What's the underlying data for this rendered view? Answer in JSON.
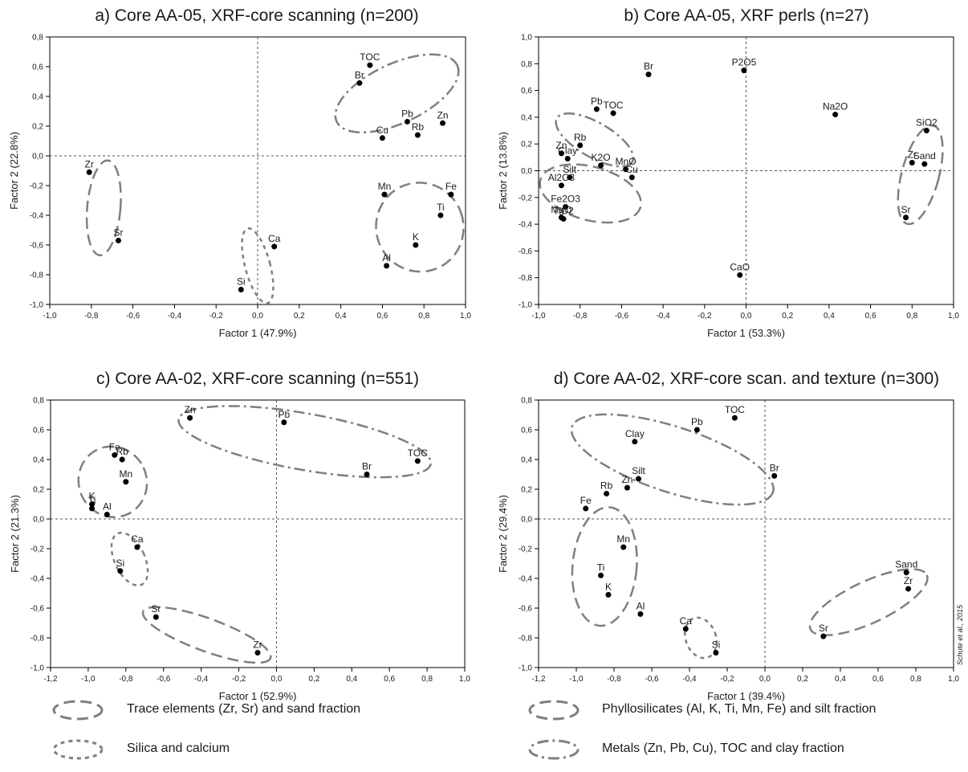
{
  "style": {
    "point_color": "#000000",
    "ellipse_color": "#7f7f7f",
    "zero_line_color": "#555555",
    "text_color": "#1a1a1a"
  },
  "credit": "Schute et al., 2015",
  "chart_data": [
    {
      "id": "a",
      "type": "scatter",
      "title": "a) Core AA-05, XRF-core scanning (n=200)",
      "xlabel": "Factor 1 (47.9%)",
      "ylabel": "Factor 2 (22.8%)",
      "xlim": [
        -1.0,
        1.0
      ],
      "ylim": [
        -1.0,
        0.8
      ],
      "xticks": [
        "-1,0",
        "-0,8",
        "-0,6",
        "-0,4",
        "-0,2",
        "0,0",
        "0,2",
        "0,4",
        "0,6",
        "0,8",
        "1,0"
      ],
      "yticks": [
        "-1,0",
        "-0,8",
        "-0,6",
        "-0,4",
        "-0,2",
        "0,0",
        "0,2",
        "0,4",
        "0,6",
        "0,8"
      ],
      "grid": false,
      "points": [
        {
          "label": "TOC",
          "x": 0.54,
          "y": 0.61
        },
        {
          "label": "Br",
          "x": 0.49,
          "y": 0.49
        },
        {
          "label": "Pb",
          "x": 0.72,
          "y": 0.23
        },
        {
          "label": "Zn",
          "x": 0.89,
          "y": 0.22
        },
        {
          "label": "Rb",
          "x": 0.77,
          "y": 0.14
        },
        {
          "label": "Cu",
          "x": 0.6,
          "y": 0.12
        },
        {
          "label": "Zr",
          "x": -0.81,
          "y": -0.11
        },
        {
          "label": "Sr",
          "x": -0.67,
          "y": -0.57
        },
        {
          "label": "Mn",
          "x": 0.61,
          "y": -0.26
        },
        {
          "label": "Fe",
          "x": 0.93,
          "y": -0.26
        },
        {
          "label": "Ti",
          "x": 0.88,
          "y": -0.4
        },
        {
          "label": "K",
          "x": 0.76,
          "y": -0.6
        },
        {
          "label": "Al",
          "x": 0.62,
          "y": -0.74
        },
        {
          "label": "Ca",
          "x": 0.08,
          "y": -0.61
        },
        {
          "label": "Si",
          "x": -0.08,
          "y": -0.9
        }
      ],
      "groups": [
        {
          "style": "dashdot",
          "cx": 0.67,
          "cy": 0.42,
          "rx": 0.32,
          "ry": 0.2,
          "rot": 25
        },
        {
          "style": "long-dash",
          "cx": -0.74,
          "cy": -0.35,
          "rx": 0.08,
          "ry": 0.32,
          "rot": -5
        },
        {
          "style": "long-dash",
          "cx": 0.78,
          "cy": -0.48,
          "rx": 0.21,
          "ry": 0.3,
          "rot": 20
        },
        {
          "style": "short-dash",
          "cx": 0.0,
          "cy": -0.74,
          "rx": 0.06,
          "ry": 0.26,
          "rot": 15
        }
      ]
    },
    {
      "id": "b",
      "type": "scatter",
      "title": "b) Core AA-05, XRF perls (n=27)",
      "xlabel": "Factor 1 (53.3%)",
      "ylabel": "Factor 2 (13.8%)",
      "xlim": [
        -1.0,
        1.0
      ],
      "ylim": [
        -1.0,
        1.0
      ],
      "xticks": [
        "-1,0",
        "-0,8",
        "-0,6",
        "-0,4",
        "-0,2",
        "0,0",
        "0,2",
        "0,4",
        "0,6",
        "0,8",
        "1,0"
      ],
      "yticks": [
        "-1,0",
        "-0,8",
        "-0,6",
        "-0,4",
        "-0,2",
        "0,0",
        "0,2",
        "0,4",
        "0,6",
        "0,8",
        "1,0"
      ],
      "grid": false,
      "points": [
        {
          "label": "Br",
          "x": -0.47,
          "y": 0.72
        },
        {
          "label": "P2O5",
          "x": -0.01,
          "y": 0.75
        },
        {
          "label": "Pb",
          "x": -0.72,
          "y": 0.46
        },
        {
          "label": "TOC",
          "x": -0.64,
          "y": 0.43
        },
        {
          "label": "Na2O",
          "x": 0.43,
          "y": 0.42
        },
        {
          "label": "Zn",
          "x": -0.89,
          "y": 0.13
        },
        {
          "label": "Rb",
          "x": -0.8,
          "y": 0.19
        },
        {
          "label": "Clay",
          "x": -0.86,
          "y": 0.09
        },
        {
          "label": "K2O",
          "x": -0.7,
          "y": 0.04
        },
        {
          "label": "MnO",
          "x": -0.58,
          "y": 0.01
        },
        {
          "label": "Cu",
          "x": -0.55,
          "y": -0.05
        },
        {
          "label": "Silt",
          "x": -0.85,
          "y": -0.05
        },
        {
          "label": "Al2O3",
          "x": -0.89,
          "y": -0.11
        },
        {
          "label": "Fe2O3",
          "x": -0.87,
          "y": -0.27
        },
        {
          "label": "TiO2",
          "x": -0.88,
          "y": -0.36
        },
        {
          "label": "MgO",
          "x": -0.89,
          "y": -0.35
        },
        {
          "label": "SiO2",
          "x": 0.87,
          "y": 0.3
        },
        {
          "label": "Zr",
          "x": 0.8,
          "y": 0.06
        },
        {
          "label": "Sand",
          "x": 0.86,
          "y": 0.05
        },
        {
          "label": "Sr",
          "x": 0.77,
          "y": -0.35
        },
        {
          "label": "CaO",
          "x": -0.03,
          "y": -0.78
        }
      ],
      "groups": [
        {
          "style": "dashdot",
          "cx": -0.73,
          "cy": 0.23,
          "rx": 0.21,
          "ry": 0.13,
          "rot": -30
        },
        {
          "style": "long-dash",
          "cx": -0.75,
          "cy": -0.17,
          "rx": 0.25,
          "ry": 0.2,
          "rot": -15
        },
        {
          "style": "long-dash",
          "cx": 0.84,
          "cy": -0.03,
          "rx": 0.09,
          "ry": 0.38,
          "rot": -15
        }
      ]
    },
    {
      "id": "c",
      "type": "scatter",
      "title": "c) Core AA-02, XRF-core scanning (n=551)",
      "xlabel": "Factor 1 (52.9%)",
      "ylabel": "Factor 2 (21.3%)",
      "xlim": [
        -1.2,
        1.0
      ],
      "ylim": [
        -1.0,
        0.8
      ],
      "xticks": [
        "-1,2",
        "-1,0",
        "-0,8",
        "-0,6",
        "-0,4",
        "-0,2",
        "0,0",
        "0,2",
        "0,4",
        "0,6",
        "0,8",
        "1,0"
      ],
      "yticks": [
        "-1,0",
        "-0,8",
        "-0,6",
        "-0,4",
        "-0,2",
        "0,0",
        "0,2",
        "0,4",
        "0,6",
        "0,8"
      ],
      "grid": false,
      "points": [
        {
          "label": "Zn",
          "x": -0.46,
          "y": 0.68
        },
        {
          "label": "Pb",
          "x": 0.04,
          "y": 0.65
        },
        {
          "label": "TOC",
          "x": 0.75,
          "y": 0.39
        },
        {
          "label": "Br",
          "x": 0.48,
          "y": 0.3
        },
        {
          "label": "Fe",
          "x": -0.86,
          "y": 0.43
        },
        {
          "label": "Rb",
          "x": -0.82,
          "y": 0.4
        },
        {
          "label": "Mn",
          "x": -0.8,
          "y": 0.25
        },
        {
          "label": "K",
          "x": -0.98,
          "y": 0.1
        },
        {
          "label": "Ti",
          "x": -0.98,
          "y": 0.07
        },
        {
          "label": "Al",
          "x": -0.9,
          "y": 0.03
        },
        {
          "label": "Ca",
          "x": -0.74,
          "y": -0.19
        },
        {
          "label": "Si",
          "x": -0.83,
          "y": -0.35
        },
        {
          "label": "Sr",
          "x": -0.64,
          "y": -0.66
        },
        {
          "label": "Zr",
          "x": -0.1,
          "y": -0.9
        }
      ],
      "groups": [
        {
          "style": "dashdot",
          "cx": 0.15,
          "cy": 0.52,
          "rx": 0.68,
          "ry": 0.19,
          "rot": -10
        },
        {
          "style": "long-dash",
          "cx": -0.87,
          "cy": 0.25,
          "rx": 0.18,
          "ry": 0.24,
          "rot": 25
        },
        {
          "style": "short-dash",
          "cx": -0.78,
          "cy": -0.27,
          "rx": 0.08,
          "ry": 0.19,
          "rot": 25
        },
        {
          "style": "long-dash",
          "cx": -0.37,
          "cy": -0.78,
          "rx": 0.36,
          "ry": 0.11,
          "rot": -20
        }
      ]
    },
    {
      "id": "d",
      "type": "scatter",
      "title": "d) Core AA-02, XRF-core scan. and texture (n=300)",
      "xlabel": "Factor 1 (39.4%)",
      "ylabel": "Factor 2 (29.4%)",
      "xlim": [
        -1.2,
        1.0
      ],
      "ylim": [
        -1.0,
        0.8
      ],
      "xticks": [
        "-1,2",
        "-1,0",
        "-0,8",
        "-0,6",
        "-0,4",
        "-0,2",
        "0,0",
        "0,2",
        "0,4",
        "0,6",
        "0,8",
        "1,0"
      ],
      "yticks": [
        "-1,0",
        "-0,8",
        "-0,6",
        "-0,4",
        "-0,2",
        "0,0",
        "0,2",
        "0,4",
        "0,6",
        "0,8"
      ],
      "grid": false,
      "points": [
        {
          "label": "TOC",
          "x": -0.16,
          "y": 0.68
        },
        {
          "label": "Pb",
          "x": -0.36,
          "y": 0.6
        },
        {
          "label": "Clay",
          "x": -0.69,
          "y": 0.52
        },
        {
          "label": "Silt",
          "x": -0.67,
          "y": 0.27
        },
        {
          "label": "Zn",
          "x": -0.73,
          "y": 0.21
        },
        {
          "label": "Rb",
          "x": -0.84,
          "y": 0.17
        },
        {
          "label": "Br",
          "x": 0.05,
          "y": 0.29
        },
        {
          "label": "Fe",
          "x": -0.95,
          "y": 0.07
        },
        {
          "label": "Mn",
          "x": -0.75,
          "y": -0.19
        },
        {
          "label": "Ti",
          "x": -0.87,
          "y": -0.38
        },
        {
          "label": "K",
          "x": -0.83,
          "y": -0.51
        },
        {
          "label": "Al",
          "x": -0.66,
          "y": -0.64
        },
        {
          "label": "Ca",
          "x": -0.42,
          "y": -0.74
        },
        {
          "label": "Si",
          "x": -0.26,
          "y": -0.9
        },
        {
          "label": "Sand",
          "x": 0.75,
          "y": -0.36
        },
        {
          "label": "Zr",
          "x": 0.76,
          "y": -0.47
        },
        {
          "label": "Sr",
          "x": 0.31,
          "y": -0.79
        }
      ],
      "groups": [
        {
          "style": "dashdot",
          "cx": -0.49,
          "cy": 0.4,
          "rx": 0.56,
          "ry": 0.22,
          "rot": -18
        },
        {
          "style": "long-dash",
          "cx": -0.85,
          "cy": -0.32,
          "rx": 0.17,
          "ry": 0.4,
          "rot": -5
        },
        {
          "style": "short-dash",
          "cx": -0.34,
          "cy": -0.8,
          "rx": 0.08,
          "ry": 0.14,
          "rot": 20
        },
        {
          "style": "long-dash",
          "cx": 0.55,
          "cy": -0.56,
          "rx": 0.34,
          "ry": 0.14,
          "rot": 25
        }
      ]
    }
  ],
  "legend": [
    {
      "style": "long-dash",
      "label": "Trace elements (Zr, Sr) and sand fraction"
    },
    {
      "style": "short-dash",
      "label": "Silica and calcium"
    },
    {
      "style": "long-dash",
      "label": "Phyllosilicates (Al, K, Ti, Mn, Fe) and silt fraction"
    },
    {
      "style": "dashdot",
      "label": "Metals (Zn, Pb, Cu), TOC and clay fraction"
    }
  ]
}
